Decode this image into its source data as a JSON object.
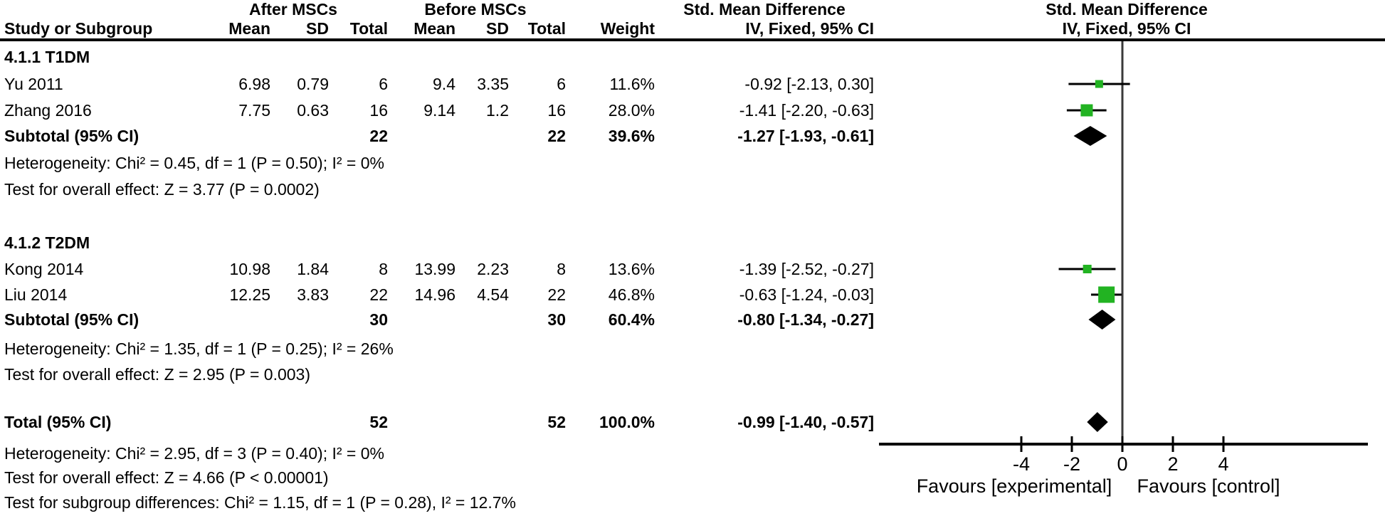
{
  "header": {
    "group_after": "After MSCs",
    "group_before": "Before MSCs",
    "smd_table": "Std. Mean Difference",
    "smd_plot": "Std. Mean Difference",
    "method_table": "IV, Fixed, 95% CI",
    "method_plot": "IV, Fixed, 95% CI",
    "study_col_label": "Study or Subgroup",
    "col_labels": {
      "mean": "Mean",
      "sd": "SD",
      "total": "Total",
      "weight": "Weight"
    }
  },
  "sections": [
    {
      "heading": "4.1.1 T1DM",
      "studies": [
        {
          "name": "Yu  2011",
          "mean1": "6.98",
          "sd1": "0.79",
          "total1": "6",
          "mean2": "9.4",
          "sd2": "3.35",
          "total2": "6",
          "weight": "11.6%",
          "ci_text": "-0.92 [-2.13, 0.30]"
        },
        {
          "name": "Zhang 2016",
          "mean1": "7.75",
          "sd1": "0.63",
          "total1": "16",
          "mean2": "9.14",
          "sd2": "1.2",
          "total2": "16",
          "weight": "28.0%",
          "ci_text": "-1.41 [-2.20, -0.63]"
        }
      ],
      "subtotal": {
        "label": "Subtotal (95% CI)",
        "total1": "22",
        "total2": "22",
        "weight": "39.6%",
        "ci_text": "-1.27 [-1.93, -0.61]"
      },
      "heterogeneity": "Heterogeneity: Chi² = 0.45, df = 1 (P = 0.50); I² = 0%",
      "overall_effect": "Test for overall effect: Z = 3.77 (P = 0.0002)"
    },
    {
      "heading": "4.1.2 T2DM",
      "studies": [
        {
          "name": "Kong 2014",
          "mean1": "10.98",
          "sd1": "1.84",
          "total1": "8",
          "mean2": "13.99",
          "sd2": "2.23",
          "total2": "8",
          "weight": "13.6%",
          "ci_text": "-1.39 [-2.52, -0.27]"
        },
        {
          "name": "Liu 2014",
          "mean1": "12.25",
          "sd1": "3.83",
          "total1": "22",
          "mean2": "14.96",
          "sd2": "4.54",
          "total2": "22",
          "weight": "46.8%",
          "ci_text": "-0.63 [-1.24, -0.03]"
        }
      ],
      "subtotal": {
        "label": "Subtotal (95% CI)",
        "total1": "30",
        "total2": "30",
        "weight": "60.4%",
        "ci_text": "-0.80 [-1.34, -0.27]"
      },
      "heterogeneity": "Heterogeneity: Chi² = 1.35, df = 1 (P = 0.25); I² = 26%",
      "overall_effect": "Test for overall effect: Z = 2.95 (P = 0.003)"
    }
  ],
  "total": {
    "label": "Total (95% CI)",
    "total1": "52",
    "total2": "52",
    "weight": "100.0%",
    "ci_text": "-0.99 [-1.40, -0.57]",
    "heterogeneity": "Heterogeneity: Chi² = 2.95, df = 3 (P = 0.40); I² = 0%",
    "overall_effect": "Test for overall effect: Z = 4.66 (P < 0.00001)",
    "subgroup_diff": "Test for subgroup differences: Chi² = 1.15, df = 1 (P = 0.28), I² = 12.7%"
  },
  "axis": {
    "ticks": [
      "-4",
      "-2",
      "0",
      "2",
      "4"
    ],
    "favours_left": "Favours [experimental]",
    "favours_right": "Favours [control]"
  },
  "colors": {
    "square_green": "#22b322",
    "diamond_black": "#000000",
    "line_black": "#000000",
    "zero_line_gray": "#3a3a3a"
  },
  "chart_data": {
    "type": "forest_plot",
    "effect_measure": "Std. Mean Difference",
    "model": "IV, Fixed, 95% CI",
    "x_ticks": [
      -4,
      -2,
      0,
      2,
      4
    ],
    "x_label_left": "Favours [experimental]",
    "x_label_right": "Favours [control]",
    "points": [
      {
        "label": "Yu 2011",
        "group": "4.1.1 T1DM",
        "est": -0.92,
        "lo": -2.13,
        "hi": 0.3,
        "weight": 11.6,
        "marker": "square"
      },
      {
        "label": "Zhang 2016",
        "group": "4.1.1 T1DM",
        "est": -1.41,
        "lo": -2.2,
        "hi": -0.63,
        "weight": 28.0,
        "marker": "square"
      },
      {
        "label": "Subtotal (95% CI)",
        "group": "4.1.1 T1DM",
        "est": -1.27,
        "lo": -1.93,
        "hi": -0.61,
        "weight": 39.6,
        "marker": "diamond"
      },
      {
        "label": "Kong 2014",
        "group": "4.1.2 T2DM",
        "est": -1.39,
        "lo": -2.52,
        "hi": -0.27,
        "weight": 13.6,
        "marker": "square"
      },
      {
        "label": "Liu 2014",
        "group": "4.1.2 T2DM",
        "est": -0.63,
        "lo": -1.24,
        "hi": -0.03,
        "weight": 46.8,
        "marker": "square"
      },
      {
        "label": "Subtotal (95% CI)",
        "group": "4.1.2 T2DM",
        "est": -0.8,
        "lo": -1.34,
        "hi": -0.27,
        "weight": 60.4,
        "marker": "diamond"
      },
      {
        "label": "Total (95% CI)",
        "group": "",
        "est": -0.99,
        "lo": -1.4,
        "hi": -0.57,
        "weight": 100.0,
        "marker": "diamond"
      }
    ]
  }
}
